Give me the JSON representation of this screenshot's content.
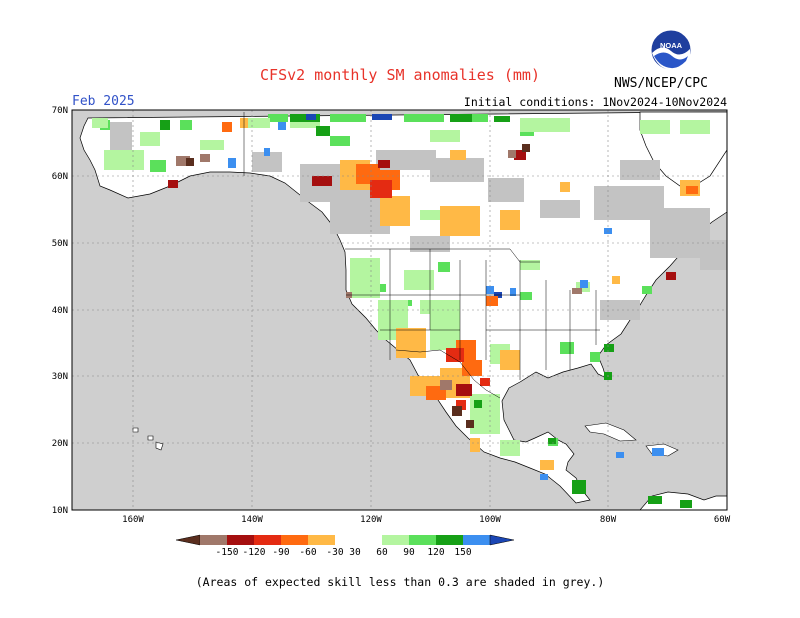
{
  "header": {
    "title": "CFSv2 monthly SM anomalies (mm)",
    "valid_month": "Feb 2025",
    "initial_conditions": "Initial conditions: 1Nov2024-10Nov2024",
    "agency": "NWS/NCEP/CPC",
    "logo_text": "NOAA"
  },
  "map": {
    "lat_labels": [
      "70N",
      "60N",
      "50N",
      "40N",
      "30N",
      "20N",
      "10N"
    ],
    "lon_labels": [
      "160W",
      "140W",
      "120W",
      "100W",
      "80W",
      "60W"
    ],
    "colors": {
      "ocean": "#cfcfcf",
      "land": "#ffffff",
      "low_skill_grey": "#c3c3c3",
      "coast": "#000000"
    }
  },
  "colorbar": {
    "labels": [
      "-150",
      "-120",
      "-90",
      "-60",
      "-30",
      "30",
      "60",
      "90",
      "120",
      "150"
    ],
    "colors": [
      "#5a2e1e",
      "#a0786a",
      "#a50f0f",
      "#e42b12",
      "#ff6a10",
      "#ffb946",
      "#ffffff",
      "#b4f5a0",
      "#5be05b",
      "#16a016",
      "#3c8ff0",
      "#1a46b4"
    ]
  },
  "footnote": "(Areas of expected skill less than 0.3 are shaded in grey.)"
}
